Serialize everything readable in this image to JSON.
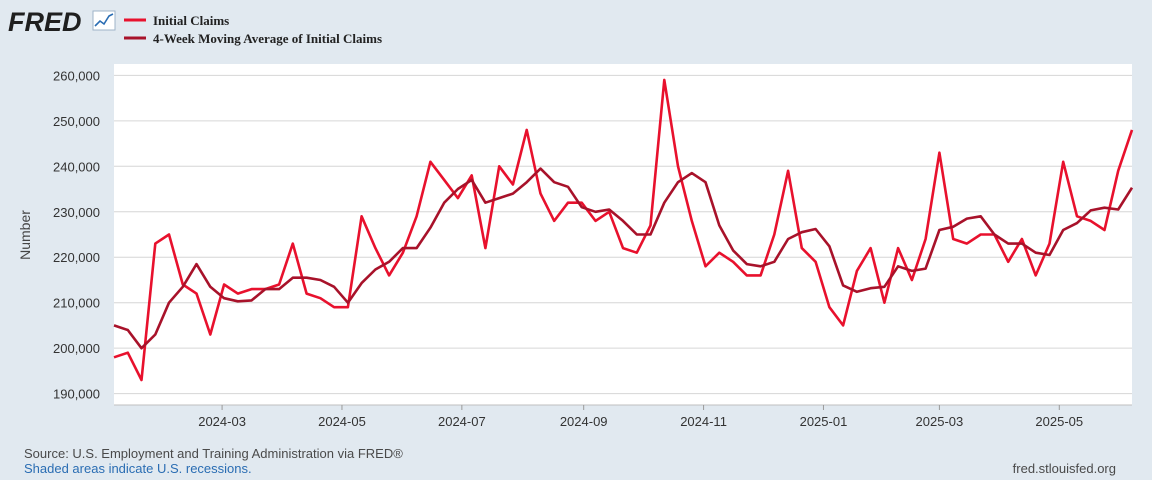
{
  "brand": {
    "name": "FRED",
    "accent": "#2a6db3"
  },
  "chart_data": {
    "type": "line",
    "title": "",
    "xlabel": "",
    "ylabel": "Number",
    "ylim": [
      187500,
      262500
    ],
    "xlim": [
      "2024-01-06",
      "2025-06-07"
    ],
    "yticks": [
      190000,
      200000,
      210000,
      220000,
      230000,
      240000,
      250000,
      260000
    ],
    "ytick_labels": [
      "190,000",
      "200,000",
      "210,000",
      "220,000",
      "230,000",
      "240,000",
      "250,000",
      "260,000"
    ],
    "xticks": [
      "2024-03-01",
      "2024-05-01",
      "2024-07-01",
      "2024-09-01",
      "2024-11-01",
      "2025-01-01",
      "2025-03-01",
      "2025-05-01"
    ],
    "xtick_labels": [
      "2024-03",
      "2024-05",
      "2024-07",
      "2024-09",
      "2024-11",
      "2025-01",
      "2025-03",
      "2025-05"
    ],
    "grid": true,
    "legend": "top-left",
    "dates": [
      "2024-01-06",
      "2024-01-13",
      "2024-01-20",
      "2024-01-27",
      "2024-02-03",
      "2024-02-10",
      "2024-02-17",
      "2024-02-24",
      "2024-03-02",
      "2024-03-09",
      "2024-03-16",
      "2024-03-23",
      "2024-03-30",
      "2024-04-06",
      "2024-04-13",
      "2024-04-20",
      "2024-04-27",
      "2024-05-04",
      "2024-05-11",
      "2024-05-18",
      "2024-05-25",
      "2024-06-01",
      "2024-06-08",
      "2024-06-15",
      "2024-06-22",
      "2024-06-29",
      "2024-07-06",
      "2024-07-13",
      "2024-07-20",
      "2024-07-27",
      "2024-08-03",
      "2024-08-10",
      "2024-08-17",
      "2024-08-24",
      "2024-08-31",
      "2024-09-07",
      "2024-09-14",
      "2024-09-21",
      "2024-09-28",
      "2024-10-05",
      "2024-10-12",
      "2024-10-19",
      "2024-10-26",
      "2024-11-02",
      "2024-11-09",
      "2024-11-16",
      "2024-11-23",
      "2024-11-30",
      "2024-12-07",
      "2024-12-14",
      "2024-12-21",
      "2024-12-28",
      "2025-01-04",
      "2025-01-11",
      "2025-01-18",
      "2025-01-25",
      "2025-02-01",
      "2025-02-08",
      "2025-02-15",
      "2025-02-22",
      "2025-03-01",
      "2025-03-08",
      "2025-03-15",
      "2025-03-22",
      "2025-03-29",
      "2025-04-05",
      "2025-04-12",
      "2025-04-19",
      "2025-04-26",
      "2025-05-03",
      "2025-05-10",
      "2025-05-17",
      "2025-05-24",
      "2025-05-31",
      "2025-06-07"
    ],
    "series": [
      {
        "name": "Initial Claims",
        "color": "#e8112d",
        "values": [
          198000,
          199000,
          193000,
          223000,
          225000,
          214000,
          212000,
          203000,
          214000,
          212000,
          213000,
          213000,
          214000,
          223000,
          212000,
          211000,
          209000,
          209000,
          229000,
          222000,
          216000,
          221000,
          229000,
          241000,
          237000,
          233000,
          238000,
          222000,
          240000,
          236000,
          248000,
          234000,
          228000,
          232000,
          232000,
          228000,
          230000,
          222000,
          221000,
          227000,
          259000,
          240000,
          228000,
          218000,
          221000,
          219000,
          216000,
          216000,
          225000,
          239000,
          222000,
          219000,
          209000,
          205000,
          217000,
          222000,
          210000,
          222000,
          215000,
          224000,
          243000,
          224000,
          223000,
          225000,
          225000,
          219000,
          224000,
          216000,
          223000,
          241000,
          229000,
          228000,
          226000,
          239000,
          248000
        ]
      },
      {
        "name": "4-Week Moving Average of Initial Claims",
        "color": "#a8122a",
        "values": [
          205000,
          204000,
          200000,
          203000,
          210000,
          213500,
          218500,
          213500,
          211000,
          210300,
          210500,
          213000,
          213000,
          215500,
          215500,
          215000,
          213500,
          210000,
          214300,
          217300,
          219000,
          222000,
          222000,
          226500,
          232000,
          235000,
          237000,
          232000,
          233000,
          234000,
          236500,
          239500,
          236500,
          235500,
          231000,
          230000,
          230500,
          228000,
          225000,
          225000,
          232000,
          236500,
          238500,
          236500,
          227000,
          221500,
          218500,
          218000,
          219000,
          224000,
          225500,
          226200,
          222400,
          213800,
          212400,
          213200,
          213500,
          218000,
          217000,
          217500,
          226000,
          226700,
          228500,
          229000,
          225000,
          223000,
          223000,
          221000,
          220500,
          226000,
          227500,
          230300,
          230900,
          230500,
          235300
        ]
      }
    ]
  },
  "footer": {
    "source": "Source: U.S. Employment and Training Administration via FRED®",
    "recessions": "Shaded areas indicate U.S. recessions.",
    "url": "fred.stlouisfed.org"
  }
}
